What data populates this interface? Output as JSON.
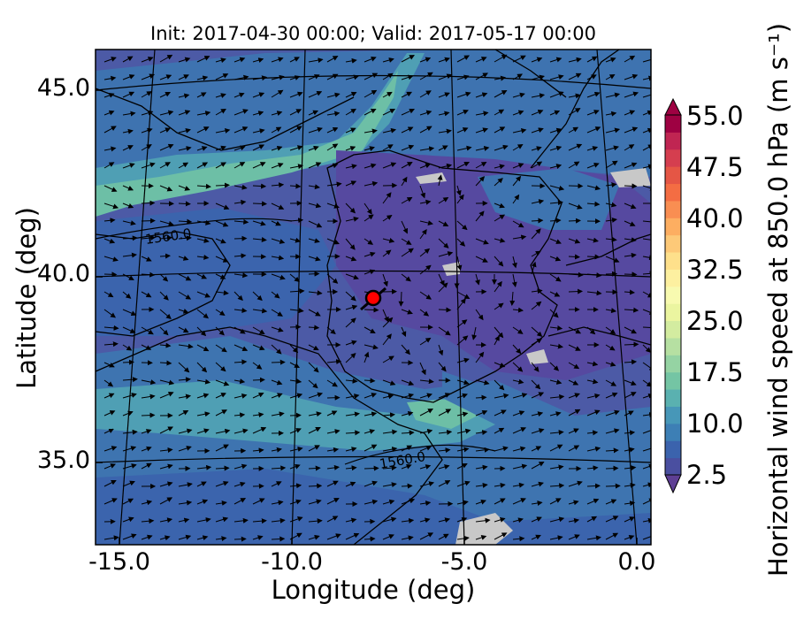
{
  "title": "Init: 2017-04-30 00:00; Valid: 2017-05-17 00:00",
  "xaxis": {
    "title": "Longitude (deg)",
    "ticks": [
      {
        "value": -15,
        "label": "-15.0"
      },
      {
        "value": -10,
        "label": "-10.0"
      },
      {
        "value": -5,
        "label": "-5.0"
      },
      {
        "value": 0,
        "label": "0.0"
      }
    ],
    "range": [
      -15.9,
      0.3
    ]
  },
  "yaxis": {
    "title": "Latitude (deg)",
    "ticks": [
      {
        "value": 45,
        "label": "45.0"
      },
      {
        "value": 40,
        "label": "40.0"
      },
      {
        "value": 35,
        "label": "35.0"
      }
    ],
    "range": [
      32.6,
      46.1
    ]
  },
  "colorbar": {
    "title": "Horizontal wind speed at 850.0 hPa (m s⁻¹)",
    "ticks": [
      "2.5",
      "10.0",
      "17.5",
      "25.0",
      "32.5",
      "40.0",
      "47.5",
      "55.0"
    ],
    "min": 2.5,
    "max": 55.0,
    "step": 2.5,
    "colors": [
      "#4a4fa0",
      "#3b63ad",
      "#3d7fb5",
      "#4797b8",
      "#5ab1b0",
      "#74c5a4",
      "#95d3a3",
      "#b6e0a2",
      "#d3eca0",
      "#ebf5a0",
      "#f8fab0",
      "#fdf0a0",
      "#fee08b",
      "#fdc978",
      "#fdae61",
      "#f98e52",
      "#f46d43",
      "#e55645",
      "#d53e4f",
      "#c02552",
      "#9e0142"
    ]
  },
  "contour_labels": [
    "1560.0",
    "1560.0"
  ],
  "point_marker": {
    "lon": -7.6,
    "lat": 39.4,
    "color": "#ff0000"
  },
  "background_colors": {
    "low": "#5a4ea0",
    "mid": "#3e74b0",
    "high": "#5bb3a4",
    "missing": "#c8c8c8"
  }
}
